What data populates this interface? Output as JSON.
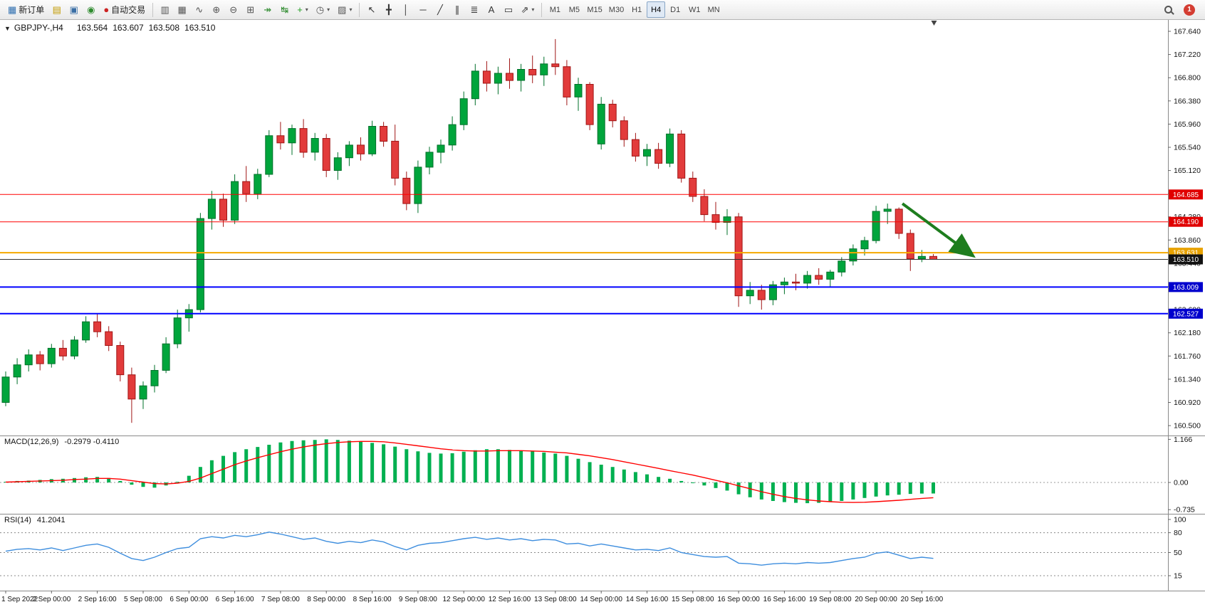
{
  "toolbar": {
    "dropdown_glyph": "▾",
    "notification_count": "1",
    "active_timeframe": "H4",
    "timeframes": [
      "M1",
      "M5",
      "M15",
      "M30",
      "H1",
      "H4",
      "D1",
      "W1",
      "MN"
    ],
    "buttons_left": [
      {
        "name": "new-order",
        "glyph": "▦",
        "glyph_color": "#2f6fb0",
        "label": "新订单"
      },
      {
        "name": "charts",
        "glyph": "▤",
        "glyph_color": "#c29a00"
      },
      {
        "name": "profiles",
        "glyph": "▣",
        "glyph_color": "#3a6ea5"
      },
      {
        "name": "sounds",
        "glyph": "◉",
        "glyph_color": "#2e8b2e"
      },
      {
        "name": "autotrading",
        "glyph": "●",
        "glyph_color": "#cc2222",
        "label": "自动交易"
      }
    ],
    "buttons_chart": [
      {
        "name": "bar-chart",
        "glyph": "▥",
        "glyph_color": "#555555"
      },
      {
        "name": "candlestick-chart",
        "glyph": "▦",
        "glyph_color": "#555555"
      },
      {
        "name": "line-chart",
        "glyph": "∿",
        "glyph_color": "#555555"
      },
      {
        "name": "zoom-in",
        "glyph": "⊕",
        "glyph_color": "#555555"
      },
      {
        "name": "zoom-out",
        "glyph": "⊖",
        "glyph_color": "#555555"
      },
      {
        "name": "tile-windows",
        "glyph": "⊞",
        "glyph_color": "#555555"
      },
      {
        "name": "auto-scroll",
        "glyph": "↠",
        "glyph_color": "#2e8b2e"
      },
      {
        "name": "chart-shift",
        "glyph": "↹",
        "glyph_color": "#2e8b2e"
      },
      {
        "name": "indicators",
        "glyph": "+",
        "glyph_color": "#1e9e1e",
        "dd": true
      },
      {
        "name": "periods",
        "glyph": "◷",
        "glyph_color": "#555555",
        "dd": true
      },
      {
        "name": "templates",
        "glyph": "▨",
        "glyph_color": "#555555",
        "dd": true
      }
    ],
    "buttons_objects": [
      {
        "name": "cursor",
        "glyph": "↖",
        "glyph_color": "#333333"
      },
      {
        "name": "crosshair",
        "glyph": "╋",
        "glyph_color": "#333333"
      },
      {
        "name": "vertical-line",
        "glyph": "│",
        "glyph_color": "#333333"
      },
      {
        "name": "horizontal-line",
        "glyph": "─",
        "glyph_color": "#333333"
      },
      {
        "name": "trendline",
        "glyph": "╱",
        "glyph_color": "#333333"
      },
      {
        "name": "equidistant-channel",
        "glyph": "∥",
        "glyph_color": "#333333"
      },
      {
        "name": "fibonacci",
        "glyph": "≣",
        "glyph_color": "#333333"
      },
      {
        "name": "text",
        "glyph": "A",
        "glyph_color": "#333333"
      },
      {
        "name": "text-label",
        "glyph": "▭",
        "glyph_color": "#333333"
      },
      {
        "name": "arrows",
        "glyph": "⇗",
        "glyph_color": "#333333",
        "dd": true
      }
    ]
  },
  "chart": {
    "header": {
      "collapse_glyph": "▼",
      "symbol": "GBPJPY-,H4",
      "open": "163.564",
      "high": "163.607",
      "low": "163.508",
      "close": "163.510"
    }
  },
  "chart_data": {
    "type": "candlestick",
    "title": "GBPJPY- H4 chart with MACD and RSI",
    "symbol": "GBPJPY-",
    "timeframe": "H4",
    "colors": {
      "bull": "#00a53c",
      "bull_dark": "#00702a",
      "bear": "#e23b3b",
      "bear_dark": "#a01616",
      "macd_hist": "#00b050",
      "macd_signal": "#ff0000",
      "rsi_line": "#3e8ede"
    },
    "y_axis": [
      "167.640",
      "167.220",
      "166.800",
      "166.380",
      "165.960",
      "165.540",
      "165.120",
      "164.700",
      "164.280",
      "163.860",
      "163.440",
      "163.020",
      "162.600",
      "162.180",
      "161.760",
      "161.340",
      "160.920",
      "160.500"
    ],
    "x_labels": [
      "1 Sep 2022",
      "2 Sep 00:00",
      "2 Sep 16:00",
      "5 Sep 08:00",
      "6 Sep 00:00",
      "6 Sep 16:00",
      "7 Sep 08:00",
      "8 Sep 00:00",
      "8 Sep 16:00",
      "9 Sep 08:00",
      "12 Sep 00:00",
      "12 Sep 16:00",
      "13 Sep 08:00",
      "14 Sep 00:00",
      "14 Sep 16:00",
      "15 Sep 08:00",
      "16 Sep 00:00",
      "16 Sep 16:00",
      "19 Sep 08:00",
      "20 Sep 00:00",
      "20 Sep 16:00"
    ],
    "label_every_n_bars": 4,
    "hlines": [
      {
        "price": 164.685,
        "label": "164.685",
        "color": "#ff0000",
        "badge": "#e00000",
        "width": 1
      },
      {
        "price": 164.19,
        "label": "164.190",
        "color": "#ff0000",
        "badge": "#e00000",
        "width": 1
      },
      {
        "price": 163.631,
        "label": "163.631",
        "color": "#f5a800",
        "badge": "#e8a200",
        "width": 2
      },
      {
        "price": 163.51,
        "label": "163.510",
        "color": "#333333",
        "badge": "#111111",
        "width": 1
      },
      {
        "price": 163.009,
        "label": "163.009",
        "color": "#0000ff",
        "badge": "#0000cd",
        "width": 2
      },
      {
        "price": 162.527,
        "label": "162.527",
        "color": "#0000ff",
        "badge": "#0000cd",
        "width": 2
      }
    ],
    "arrow": {
      "from_bar": 78.3,
      "from_price": 164.52,
      "to_bar": 84.3,
      "to_price": 163.6,
      "color": "#1e7d1e"
    },
    "candles": [
      [
        160.92,
        161.48,
        160.85,
        161.38
      ],
      [
        161.38,
        161.72,
        161.25,
        161.6
      ],
      [
        161.6,
        161.88,
        161.48,
        161.78
      ],
      [
        161.78,
        161.85,
        161.5,
        161.62
      ],
      [
        161.62,
        161.98,
        161.55,
        161.9
      ],
      [
        161.9,
        162.05,
        161.68,
        161.76
      ],
      [
        161.76,
        162.12,
        161.7,
        162.05
      ],
      [
        162.05,
        162.48,
        162.0,
        162.38
      ],
      [
        162.38,
        162.52,
        162.1,
        162.2
      ],
      [
        162.2,
        162.3,
        161.85,
        161.95
      ],
      [
        161.95,
        162.02,
        161.3,
        161.42
      ],
      [
        161.42,
        161.55,
        160.55,
        160.98
      ],
      [
        160.98,
        161.3,
        160.8,
        161.22
      ],
      [
        161.22,
        161.6,
        161.1,
        161.5
      ],
      [
        161.5,
        162.1,
        161.45,
        161.98
      ],
      [
        161.98,
        162.6,
        161.9,
        162.45
      ],
      [
        162.45,
        162.7,
        162.2,
        162.6
      ],
      [
        162.6,
        164.35,
        162.55,
        164.25
      ],
      [
        164.25,
        164.75,
        164.05,
        164.6
      ],
      [
        164.6,
        164.7,
        164.1,
        164.22
      ],
      [
        164.22,
        165.05,
        164.15,
        164.92
      ],
      [
        164.92,
        165.2,
        164.55,
        164.7
      ],
      [
        164.7,
        165.15,
        164.6,
        165.05
      ],
      [
        165.05,
        165.85,
        165.0,
        165.75
      ],
      [
        165.75,
        166.0,
        165.5,
        165.62
      ],
      [
        165.62,
        165.95,
        165.4,
        165.88
      ],
      [
        165.88,
        166.05,
        165.35,
        165.45
      ],
      [
        165.45,
        165.8,
        165.3,
        165.7
      ],
      [
        165.7,
        165.78,
        165.0,
        165.12
      ],
      [
        165.12,
        165.45,
        164.95,
        165.35
      ],
      [
        165.35,
        165.65,
        165.2,
        165.58
      ],
      [
        165.58,
        165.72,
        165.3,
        165.42
      ],
      [
        165.42,
        166.02,
        165.38,
        165.92
      ],
      [
        165.92,
        166.0,
        165.55,
        165.65
      ],
      [
        165.65,
        165.95,
        164.85,
        164.98
      ],
      [
        164.98,
        165.1,
        164.4,
        164.52
      ],
      [
        164.52,
        165.3,
        164.35,
        165.18
      ],
      [
        165.18,
        165.55,
        165.05,
        165.45
      ],
      [
        165.45,
        165.68,
        165.25,
        165.58
      ],
      [
        165.58,
        166.1,
        165.48,
        165.95
      ],
      [
        165.95,
        166.55,
        165.85,
        166.42
      ],
      [
        166.42,
        167.05,
        166.3,
        166.92
      ],
      [
        166.92,
        167.1,
        166.55,
        166.7
      ],
      [
        166.7,
        167.0,
        166.5,
        166.88
      ],
      [
        166.88,
        167.15,
        166.6,
        166.75
      ],
      [
        166.75,
        167.05,
        166.55,
        166.95
      ],
      [
        166.95,
        167.2,
        166.7,
        166.85
      ],
      [
        166.85,
        167.18,
        166.65,
        167.05
      ],
      [
        167.05,
        167.5,
        166.85,
        167.0
      ],
      [
        167.0,
        167.12,
        166.3,
        166.45
      ],
      [
        166.45,
        166.8,
        166.2,
        166.68
      ],
      [
        166.68,
        166.72,
        165.85,
        165.95
      ],
      [
        165.6,
        166.45,
        165.5,
        166.32
      ],
      [
        166.32,
        166.4,
        165.9,
        166.02
      ],
      [
        166.02,
        166.1,
        165.55,
        165.68
      ],
      [
        165.68,
        165.8,
        165.28,
        165.38
      ],
      [
        165.38,
        165.6,
        165.2,
        165.5
      ],
      [
        165.5,
        165.62,
        165.15,
        165.25
      ],
      [
        165.25,
        165.88,
        165.18,
        165.78
      ],
      [
        165.78,
        165.85,
        164.9,
        164.98
      ],
      [
        164.98,
        165.1,
        164.55,
        164.65
      ],
      [
        164.65,
        164.78,
        164.2,
        164.32
      ],
      [
        164.32,
        164.55,
        164.05,
        164.18
      ],
      [
        164.18,
        164.42,
        163.95,
        164.28
      ],
      [
        164.28,
        164.35,
        162.65,
        162.85
      ],
      [
        162.85,
        163.1,
        162.7,
        162.95
      ],
      [
        162.95,
        163.05,
        162.6,
        162.78
      ],
      [
        162.78,
        163.12,
        162.68,
        163.05
      ],
      [
        163.05,
        163.18,
        162.88,
        163.1
      ],
      [
        163.1,
        163.25,
        162.95,
        163.08
      ],
      [
        163.08,
        163.3,
        162.98,
        163.22
      ],
      [
        163.22,
        163.35,
        163.05,
        163.15
      ],
      [
        163.15,
        163.32,
        163.02,
        163.28
      ],
      [
        163.28,
        163.55,
        163.2,
        163.48
      ],
      [
        163.48,
        163.78,
        163.4,
        163.7
      ],
      [
        163.7,
        163.92,
        163.58,
        163.85
      ],
      [
        163.85,
        164.48,
        163.8,
        164.38
      ],
      [
        164.38,
        164.52,
        164.15,
        164.42
      ],
      [
        164.42,
        164.45,
        163.88,
        163.98
      ],
      [
        163.98,
        164.05,
        163.3,
        163.52
      ],
      [
        163.52,
        163.68,
        163.46,
        163.564
      ],
      [
        163.564,
        163.607,
        163.508,
        163.51
      ]
    ],
    "macd": {
      "label": "MACD(12,26,9)",
      "values_text": "-0.2979 -0.4110",
      "axis": [
        "1.166",
        "0.00",
        "-0.735"
      ],
      "histogram": [
        0.02,
        0.04,
        0.05,
        0.07,
        0.09,
        0.1,
        0.12,
        0.14,
        0.15,
        0.12,
        0.04,
        -0.06,
        -0.12,
        -0.14,
        -0.08,
        0.02,
        0.18,
        0.42,
        0.6,
        0.72,
        0.82,
        0.9,
        0.96,
        1.02,
        1.08,
        1.12,
        1.14,
        1.15,
        1.166,
        1.15,
        1.13,
        1.1,
        1.07,
        1.03,
        0.97,
        0.9,
        0.84,
        0.8,
        0.78,
        0.79,
        0.83,
        0.87,
        0.9,
        0.9,
        0.88,
        0.86,
        0.84,
        0.81,
        0.78,
        0.72,
        0.64,
        0.55,
        0.48,
        0.42,
        0.35,
        0.28,
        0.22,
        0.15,
        0.1,
        0.04,
        -0.02,
        -0.08,
        -0.15,
        -0.22,
        -0.32,
        -0.4,
        -0.46,
        -0.5,
        -0.53,
        -0.55,
        -0.56,
        -0.55,
        -0.53,
        -0.5,
        -0.46,
        -0.42,
        -0.38,
        -0.35,
        -0.33,
        -0.31,
        -0.3,
        -0.2979
      ],
      "signal": [
        0.01,
        0.02,
        0.03,
        0.04,
        0.05,
        0.06,
        0.08,
        0.09,
        0.11,
        0.11,
        0.09,
        0.05,
        0.01,
        -0.03,
        -0.04,
        -0.02,
        0.03,
        0.12,
        0.24,
        0.36,
        0.48,
        0.58,
        0.67,
        0.75,
        0.83,
        0.9,
        0.96,
        1.01,
        1.05,
        1.08,
        1.1,
        1.11,
        1.11,
        1.1,
        1.07,
        1.03,
        0.99,
        0.95,
        0.91,
        0.88,
        0.86,
        0.85,
        0.85,
        0.86,
        0.86,
        0.86,
        0.85,
        0.84,
        0.82,
        0.8,
        0.76,
        0.72,
        0.67,
        0.62,
        0.56,
        0.5,
        0.44,
        0.38,
        0.32,
        0.26,
        0.2,
        0.13,
        0.06,
        -0.01,
        -0.09,
        -0.17,
        -0.25,
        -0.32,
        -0.38,
        -0.43,
        -0.47,
        -0.5,
        -0.52,
        -0.535,
        -0.54,
        -0.535,
        -0.52,
        -0.5,
        -0.48,
        -0.455,
        -0.43,
        -0.411
      ]
    },
    "rsi": {
      "label": "RSI(14)",
      "value_text": "41.2041",
      "axis": [
        "100",
        "80",
        "50",
        "15"
      ],
      "levels": [
        80,
        50,
        15
      ],
      "values": [
        52,
        55,
        56,
        54,
        57,
        53,
        57,
        61,
        63,
        58,
        49,
        41,
        38,
        43,
        50,
        56,
        58,
        71,
        74,
        72,
        76,
        74,
        77,
        81,
        78,
        74,
        70,
        72,
        67,
        64,
        67,
        65,
        69,
        66,
        59,
        54,
        61,
        64,
        65,
        68,
        71,
        73,
        70,
        72,
        69,
        71,
        68,
        70,
        69,
        63,
        64,
        60,
        63,
        60,
        57,
        54,
        55,
        53,
        57,
        50,
        47,
        44,
        43,
        44,
        34,
        33,
        31,
        33,
        34,
        33,
        35,
        34,
        35,
        38,
        41,
        43,
        49,
        51,
        46,
        41,
        43,
        41.2
      ]
    }
  }
}
